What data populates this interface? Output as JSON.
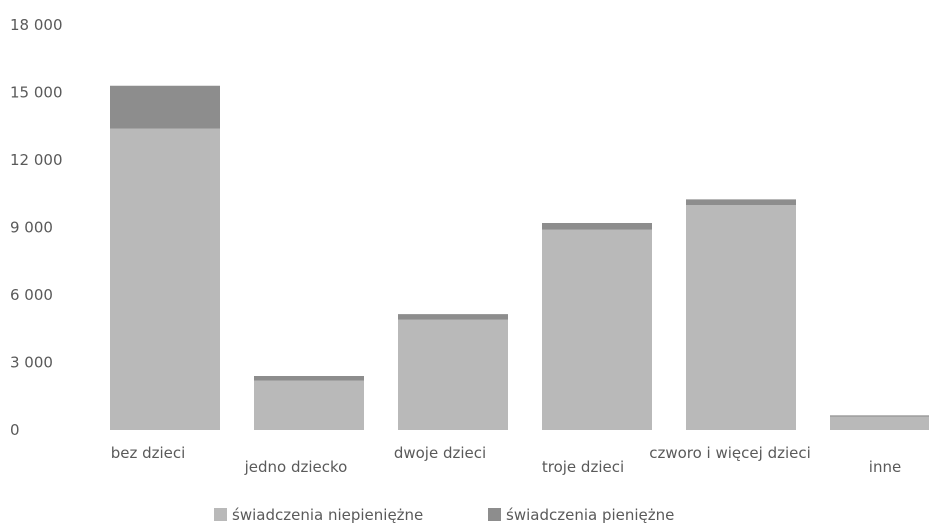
{
  "chart_data": {
    "type": "bar",
    "stacked": true,
    "categories": [
      "bez dzieci",
      "jedno dziecko",
      "dwoje dzieci",
      "troje dzieci",
      "czworo i więcej dzieci",
      "inne"
    ],
    "series": [
      {
        "name": "świadczenia niepieniężne",
        "values": [
          13400,
          2200,
          4900,
          8900,
          10000,
          600
        ],
        "color": "#b9b9b9"
      },
      {
        "name": "świadczenia pieniężne",
        "values": [
          1900,
          200,
          250,
          300,
          250,
          50
        ],
        "color": "#8d8d8d"
      }
    ],
    "yticks": [
      "0",
      "3 000",
      "6 000",
      "9 000",
      "12 000",
      "15 000",
      "18 000"
    ],
    "ylim": [
      0,
      18000
    ],
    "grid": false,
    "legend": "bottom"
  }
}
